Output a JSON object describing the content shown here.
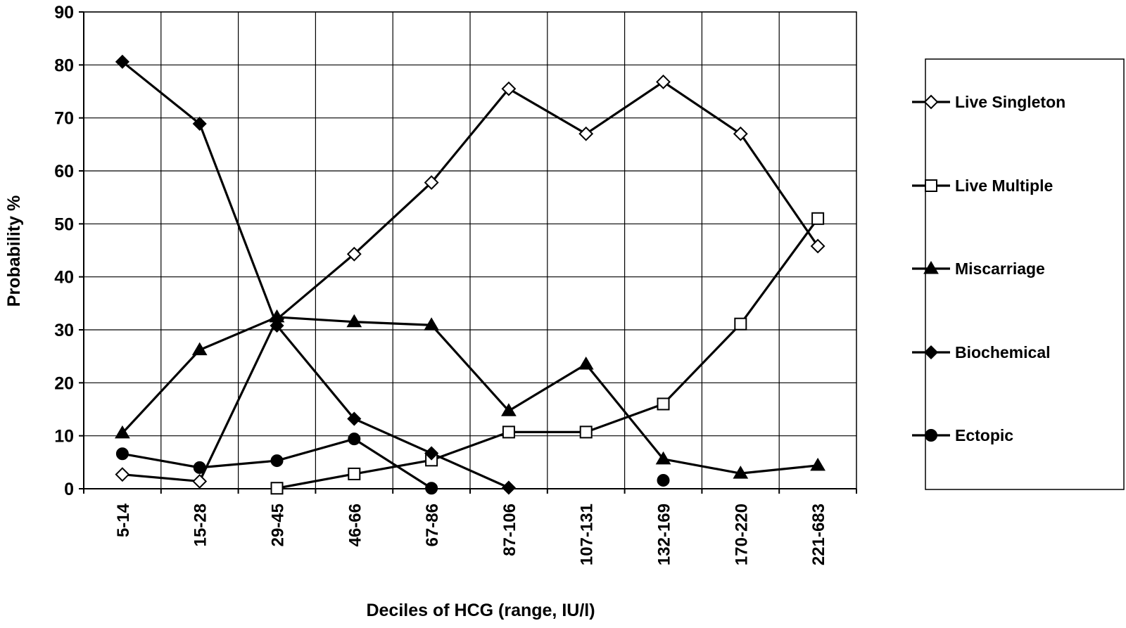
{
  "chart_data": {
    "type": "line",
    "xlabel": "Deciles of HCG (range, IU/l)",
    "ylabel": "Probability %",
    "ylim": [
      0,
      90
    ],
    "yticks": [
      "0",
      "10",
      "20",
      "30",
      "40",
      "50",
      "60",
      "70",
      "80",
      "90"
    ],
    "grid": true,
    "legend_position": "right",
    "categories": [
      "5-14",
      "15-28",
      "29-45",
      "46-66",
      "67-86",
      "87-106",
      "107-131",
      "132-169",
      "170-220",
      "221-683"
    ],
    "series": [
      {
        "name": "Live Singleton",
        "marker": "diamond-open",
        "values": [
          2.7,
          1.4,
          32,
          44.3,
          57.8,
          75.5,
          67,
          76.8,
          67,
          45.8
        ]
      },
      {
        "name": "Live Multiple",
        "marker": "square-open",
        "values": [
          null,
          null,
          0.1,
          2.8,
          5.4,
          10.7,
          10.7,
          16,
          31.1,
          51
        ]
      },
      {
        "name": "Miscarriage",
        "marker": "triangle-filled",
        "values": [
          10.5,
          26.2,
          32.4,
          31.5,
          30.9,
          14.7,
          23.5,
          5.6,
          2.9,
          4.4
        ]
      },
      {
        "name": "Biochemical",
        "marker": "diamond-filled",
        "values": [
          80.6,
          68.9,
          30.8,
          13.2,
          6.7,
          0.2,
          null,
          null,
          null,
          null
        ]
      },
      {
        "name": "Ectopic",
        "marker": "circle-filled",
        "values": [
          6.6,
          4,
          5.3,
          9.4,
          0.1,
          null,
          null,
          1.6,
          null,
          null
        ]
      }
    ]
  }
}
